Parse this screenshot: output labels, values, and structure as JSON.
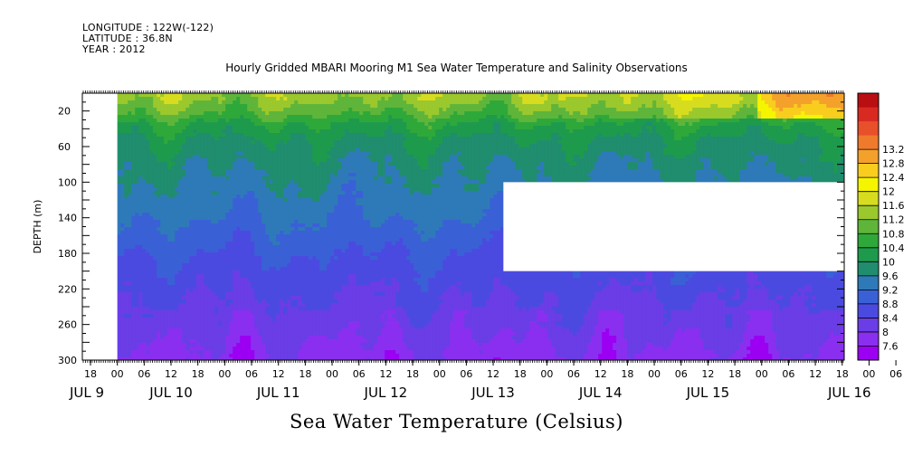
{
  "header": {
    "longitude": "LONGITUDE : 122W(-122)",
    "latitude": "LATITUDE : 36.8N",
    "year": "YEAR : 2012"
  },
  "chart_data": {
    "type": "heatmap",
    "title": "Hourly Gridded MBARI Mooring M1 Sea Water Temperature and Salinity Observations",
    "bottom_title": "Sea Water Temperature (Celsius)",
    "ylabel": "DEPTH (m)",
    "ylim": [
      300,
      0
    ],
    "y_ticks": [
      20,
      60,
      100,
      140,
      180,
      220,
      260,
      300
    ],
    "x_hour_labels": [
      "18",
      "00",
      "06",
      "12",
      "18",
      "00",
      "06",
      "12",
      "18",
      "00",
      "06",
      "12",
      "18",
      "00",
      "06",
      "12",
      "18",
      "00",
      "06",
      "12",
      "18",
      "00",
      "06",
      "12",
      "18",
      "00",
      "06",
      "12",
      "18",
      "00",
      "06",
      "12"
    ],
    "x_day_labels": [
      "JUL 9",
      "JUL 10",
      "JUL 11",
      "JUL 12",
      "JUL 13",
      "JUL 14",
      "JUL 15",
      "JUL 16"
    ],
    "colorbar": {
      "levels": [
        7.6,
        8,
        8.4,
        8.8,
        9.2,
        9.6,
        10,
        10.4,
        10.8,
        11.2,
        11.6,
        12,
        12.4,
        12.8,
        13.2
      ],
      "colors": [
        "#9b00f2",
        "#8a2ff0",
        "#6a3de6",
        "#4b4ae0",
        "#3a60d6",
        "#2e7ab8",
        "#1f8d6e",
        "#1e9a4d",
        "#2fa83a",
        "#5fb53a",
        "#9ac82d",
        "#d7dd1e",
        "#f5f500",
        "#f9cd1e",
        "#f4a12b",
        "#ef7a2c",
        "#e8502a",
        "#d92a22",
        "#b90f12"
      ],
      "colorbar_labels": [
        "13.2",
        "12.8",
        "12.4",
        "12",
        "11.6",
        "11.2",
        "10.8",
        "10.4",
        "10",
        "9.6",
        "9.2",
        "8.8",
        "8.4",
        "8",
        "7.6"
      ]
    },
    "profile": {
      "depths": [
        0,
        10,
        20,
        35,
        50,
        70,
        90,
        110,
        140,
        170,
        200,
        230,
        260,
        280,
        300
      ],
      "temps": [
        11.4,
        11.2,
        10.9,
        10.3,
        10.0,
        9.75,
        9.6,
        9.45,
        9.2,
        8.9,
        8.6,
        8.4,
        8.25,
        8.05,
        7.9
      ]
    },
    "data_start_label_index": 1,
    "missing_regions": [
      {
        "x_from_label": 0,
        "x_to_label": 1,
        "depth_from": 0,
        "depth_to": 300
      },
      {
        "x_from_label": 15.38,
        "x_to_label": 28.12,
        "depth_from": 100,
        "depth_to": 200
      }
    ]
  }
}
